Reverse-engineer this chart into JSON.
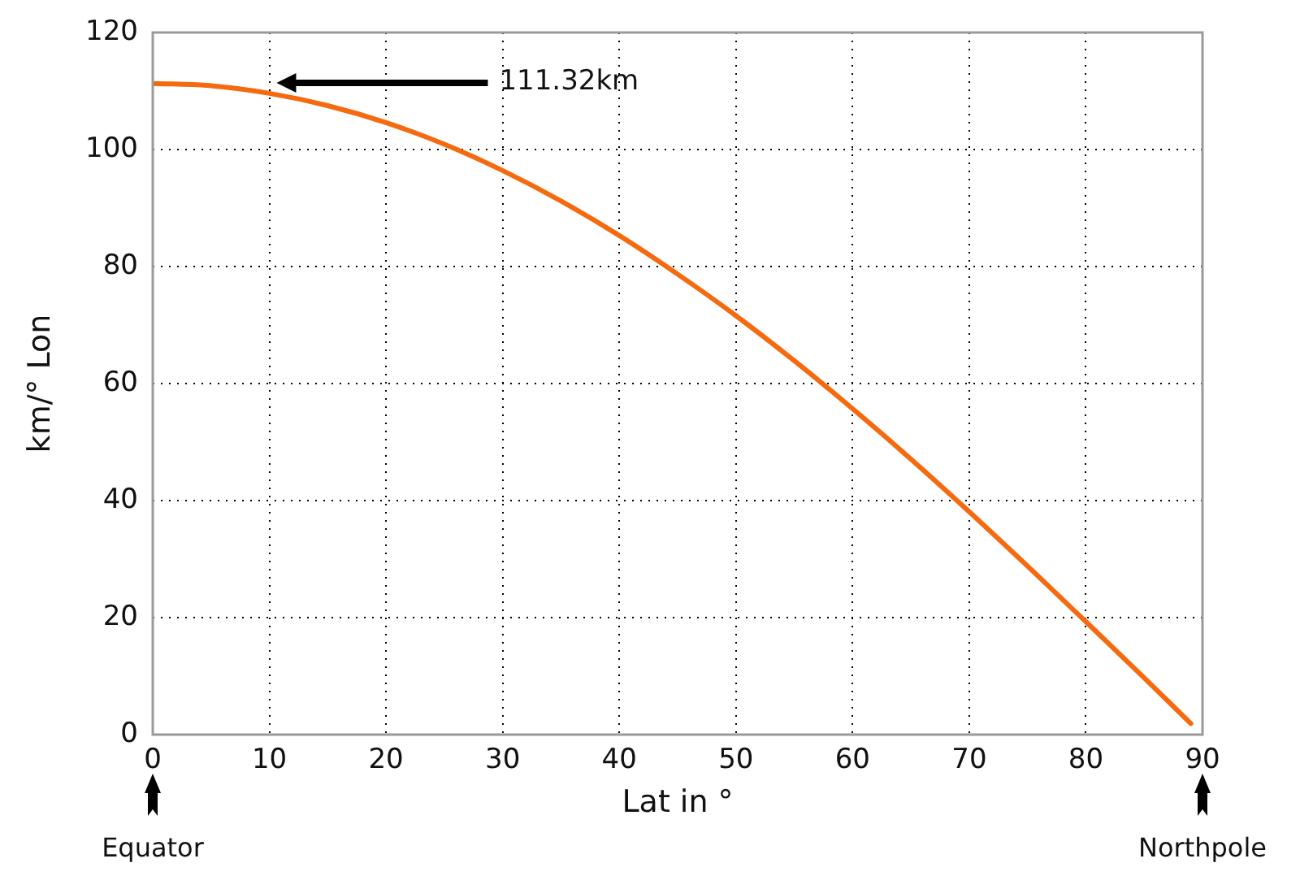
{
  "chart_data": {
    "type": "line",
    "xlabel": "Lat in °",
    "ylabel": "km/° Lon",
    "x": [
      0,
      5,
      10,
      15,
      20,
      25,
      30,
      35,
      40,
      45,
      50,
      55,
      60,
      65,
      70,
      75,
      80,
      85,
      89
    ],
    "series": [
      {
        "color": "#f5690f",
        "values": [
          111.3,
          110.9,
          109.6,
          107.5,
          104.6,
          100.9,
          96.4,
          91.2,
          85.3,
          78.7,
          71.6,
          63.9,
          55.7,
          47.1,
          38.1,
          28.8,
          19.3,
          9.7,
          1.9
        ]
      }
    ],
    "xlim": [
      0,
      90
    ],
    "xticks": [
      0,
      10,
      20,
      30,
      40,
      50,
      60,
      70,
      80,
      90
    ],
    "ylim": [
      0,
      120
    ],
    "yticks": [
      0,
      20,
      40,
      60,
      80,
      100,
      120
    ],
    "grid": true,
    "legend": false,
    "marker": "none",
    "line_style": "solid",
    "annotations": [
      "111.32km",
      "Equator",
      "Northpole"
    ]
  }
}
